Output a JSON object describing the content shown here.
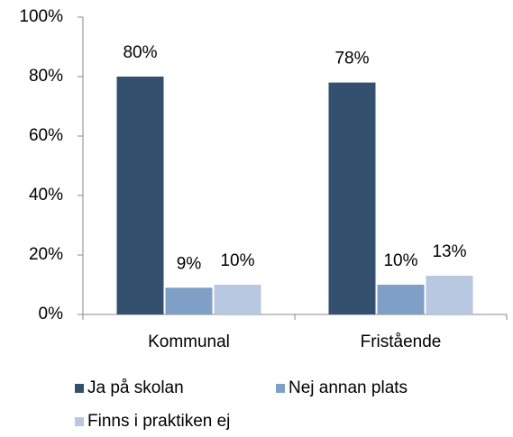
{
  "chart_data": {
    "type": "bar",
    "categories": [
      "Kommunal",
      "Fristående"
    ],
    "series": [
      {
        "name": "Ja på skolan",
        "color": "#33506f",
        "values": [
          80,
          78
        ],
        "value_labels": [
          "80%",
          "78%"
        ]
      },
      {
        "name": "Nej annan plats",
        "color": "#7f9fc6",
        "values": [
          9,
          10
        ],
        "value_labels": [
          "9%",
          "10%"
        ]
      },
      {
        "name": "Finns i praktiken ej",
        "color": "#b7c8e0",
        "values": [
          10,
          13
        ],
        "value_labels": [
          "10%",
          "13%"
        ]
      }
    ],
    "ylim": [
      0,
      100
    ],
    "yticks": [
      {
        "value": 0,
        "label": "0%"
      },
      {
        "value": 20,
        "label": "20%"
      },
      {
        "value": 40,
        "label": "40%"
      },
      {
        "value": 60,
        "label": "60%"
      },
      {
        "value": 80,
        "label": "80%"
      },
      {
        "value": 100,
        "label": "100%"
      }
    ],
    "grid": false,
    "legend": "bottom"
  }
}
